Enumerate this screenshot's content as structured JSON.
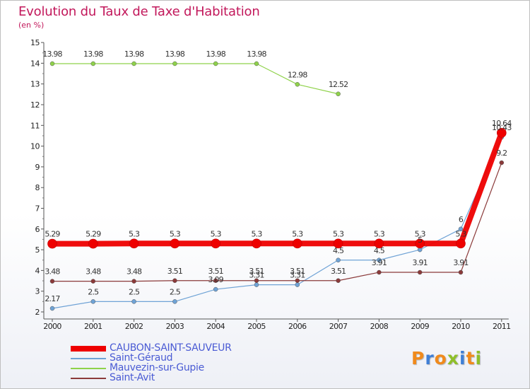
{
  "title": "Evolution du Taux de Taxe d'Habitation",
  "subtitle": "(en %)",
  "logo": {
    "text": "Proxiti",
    "letters": [
      {
        "ch": "P",
        "color": "#f08a1c"
      },
      {
        "ch": "r",
        "color": "#3f7fd6"
      },
      {
        "ch": "o",
        "color": "#f08a1c"
      },
      {
        "ch": "x",
        "color": "#8fbf2a"
      },
      {
        "ch": "i",
        "color": "#3f7fd6"
      },
      {
        "ch": "t",
        "color": "#f08a1c"
      },
      {
        "ch": "i",
        "color": "#8fbf2a"
      }
    ]
  },
  "chart_data": {
    "type": "line",
    "title": "Evolution du Taux de Taxe d'Habitation",
    "subtitle": "(en %)",
    "xlabel": "",
    "ylabel": "",
    "x": [
      "2000",
      "2001",
      "2002",
      "2003",
      "2004",
      "2005",
      "2006",
      "2007",
      "2008",
      "2009",
      "2010",
      "2011"
    ],
    "ylim": [
      2,
      15
    ],
    "yticks": [
      "2",
      "3",
      "4",
      "5",
      "6",
      "7",
      "8",
      "9",
      "10",
      "11",
      "12",
      "13",
      "14",
      "15"
    ],
    "grid": false,
    "legend_position": "bottom-left",
    "series": [
      {
        "name": "CAUBON-SAINT-SAUVEUR",
        "color": "#ee0000",
        "width": 8,
        "values": [
          5.29,
          5.29,
          5.3,
          5.3,
          5.3,
          5.3,
          5.3,
          5.3,
          5.3,
          5.3,
          5.3,
          10.64
        ],
        "labels": [
          "5.29",
          "5.29",
          "5.3",
          "5.3",
          "5.3",
          "5.3",
          "5.3",
          "5.3",
          "5.3",
          "5.3",
          "5.3",
          "10.64"
        ]
      },
      {
        "name": "Saint-Géraud",
        "color": "#6fa3d6",
        "width": 1.2,
        "values": [
          2.17,
          2.5,
          2.5,
          2.5,
          3.09,
          3.31,
          3.31,
          4.5,
          4.5,
          5,
          6,
          10.43
        ],
        "labels": [
          "2.17",
          "2.5",
          "2.5",
          "2.5",
          "3.09",
          "3.31",
          "3.31",
          "4.5",
          "4.5",
          "5",
          "6",
          "10.43"
        ]
      },
      {
        "name": "Mauvezin-sur-Gupie",
        "color": "#8fd24a",
        "width": 1.2,
        "values": [
          13.98,
          13.98,
          13.98,
          13.98,
          13.98,
          13.98,
          12.98,
          12.52,
          null,
          null,
          null,
          null
        ],
        "labels": [
          "13.98",
          "13.98",
          "13.98",
          "13.98",
          "13.98",
          "13.98",
          "12.98",
          "12.52",
          "",
          "",
          "",
          ""
        ]
      },
      {
        "name": "Saint-Avit",
        "color": "#8b3a3a",
        "width": 1.2,
        "values": [
          3.48,
          3.48,
          3.48,
          3.51,
          3.51,
          3.51,
          3.51,
          3.51,
          3.91,
          3.91,
          3.91,
          9.2
        ],
        "labels": [
          "3.48",
          "3.48",
          "3.48",
          "3.51",
          "3.51",
          "3.51",
          "3.51",
          "3.51",
          "3.91",
          "3.91",
          "3.91",
          "9.2"
        ]
      }
    ]
  }
}
